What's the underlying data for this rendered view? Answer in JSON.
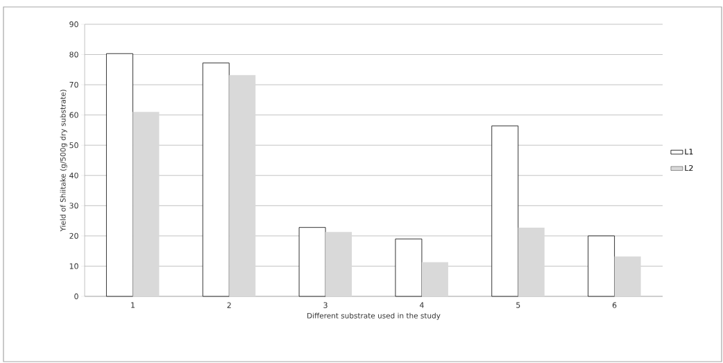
{
  "chart_data": {
    "type": "bar",
    "xlabel": "Different substrate used in the study",
    "ylabel": "Yield of Shiitake (g/500g dry substrate)",
    "categories": [
      "1",
      "2",
      "3",
      "4",
      "5",
      "6"
    ],
    "series": [
      {
        "name": "L1",
        "color": "#ffffff",
        "values": [
          80.3,
          77.2,
          22.8,
          19.0,
          56.4,
          20.0
        ]
      },
      {
        "name": "L2",
        "color": "#d9d9d9",
        "values": [
          61.0,
          73.2,
          21.3,
          11.3,
          22.7,
          13.2
        ]
      }
    ],
    "ylim": [
      0,
      90
    ],
    "yticks": [
      0,
      10,
      20,
      30,
      40,
      50,
      60,
      70,
      80,
      90
    ],
    "grid": "y",
    "legend": "right"
  }
}
